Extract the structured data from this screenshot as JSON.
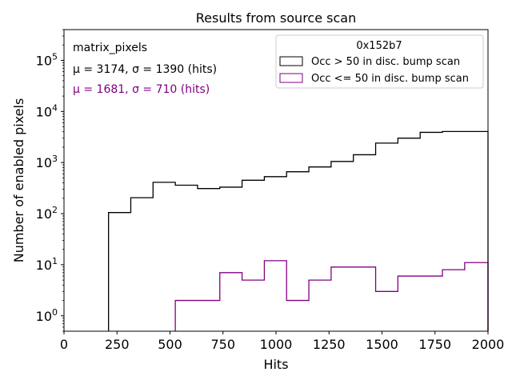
{
  "chart_data": {
    "type": "histogram",
    "title": "Results from source scan",
    "xlabel": "Hits",
    "ylabel": "Number of enabled pixels",
    "xlim": [
      0,
      2000
    ],
    "ylim": [
      0.5,
      400000
    ],
    "yscale": "log",
    "grid": false,
    "xticks": [
      0,
      250,
      500,
      750,
      1000,
      1250,
      1500,
      1750,
      2000
    ],
    "xtick_labels": [
      "0",
      "250",
      "500",
      "750",
      "1000",
      "1250",
      "1500",
      "1750",
      "2000"
    ],
    "yticks": [
      1,
      10,
      100,
      1000,
      10000,
      100000
    ],
    "ytick_labels": [
      {
        "base": "10",
        "exp": "0"
      },
      {
        "base": "10",
        "exp": "1"
      },
      {
        "base": "10",
        "exp": "2"
      },
      {
        "base": "10",
        "exp": "3"
      },
      {
        "base": "10",
        "exp": "4"
      },
      {
        "base": "10",
        "exp": "5"
      }
    ],
    "bin_edges": [
      210,
      315,
      420,
      525,
      630,
      735,
      840,
      945,
      1050,
      1155,
      1260,
      1365,
      1470,
      1575,
      1680,
      1785,
      1890,
      2000
    ],
    "series": [
      {
        "name": "Occ > 50 in disc. bump scan",
        "color": "#000000",
        "values": [
          105,
          205,
          410,
          360,
          310,
          330,
          450,
          530,
          660,
          820,
          1050,
          1420,
          2400,
          3000,
          3900,
          4050,
          4050
        ]
      },
      {
        "name": "Occ <= 50 in disc. bump scan",
        "color": "#800080",
        "values": [
          0,
          0,
          0,
          2,
          2,
          7,
          5,
          12,
          2,
          5,
          9,
          9,
          3,
          6,
          6,
          8,
          11
        ]
      }
    ],
    "legend": {
      "title": "0x152b7",
      "location": "top-right",
      "entries": [
        "Occ > 50 in disc. bump scan",
        "Occ <= 50 in disc. bump scan"
      ]
    },
    "annotations": [
      {
        "text": "matrix_pixels",
        "color": "#000000"
      },
      {
        "text": "μ = 3174, σ = 1390 (hits)",
        "color": "#000000"
      },
      {
        "text": "μ = 1681, σ = 710 (hits)",
        "color": "#800080"
      }
    ]
  }
}
